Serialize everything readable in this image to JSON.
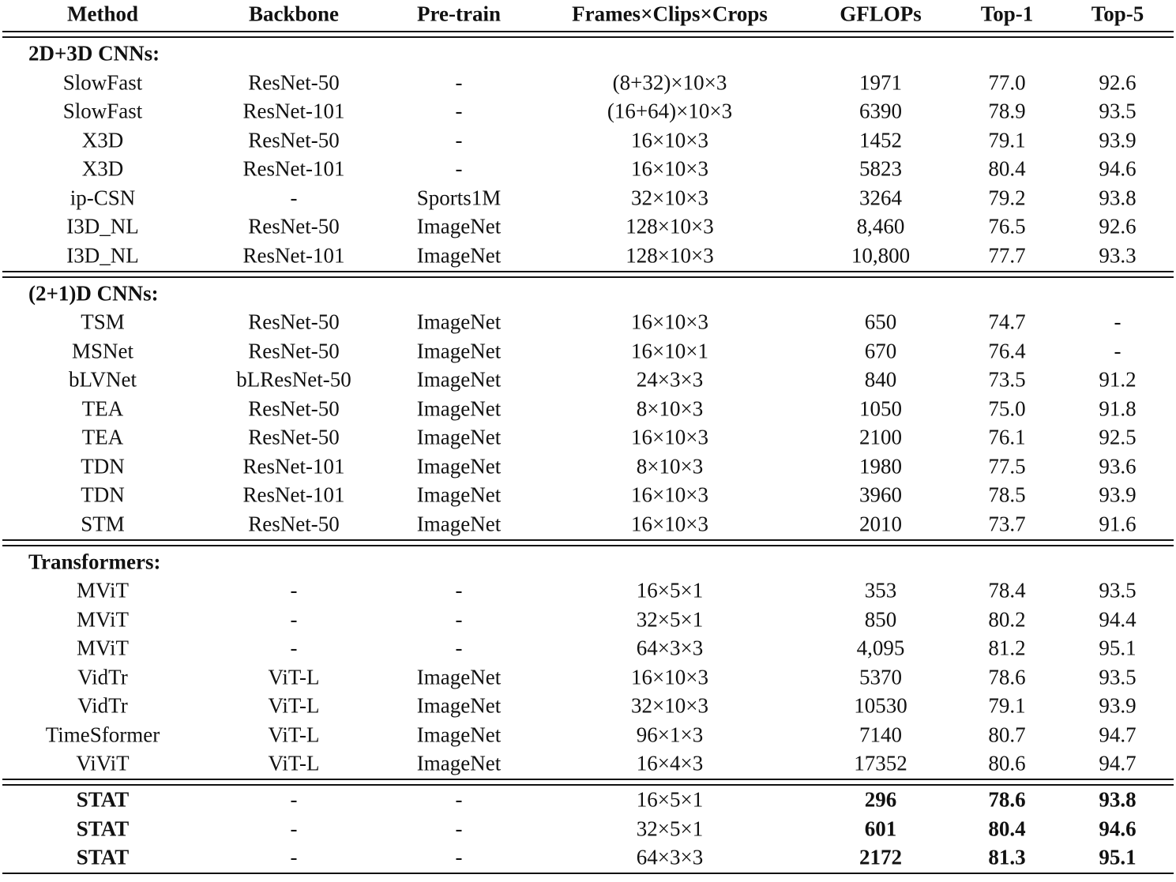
{
  "table": {
    "header": [
      "Method",
      "Backbone",
      "Pre-train",
      "Frames×Clips×Crops",
      "GFLOPs",
      "Top-1",
      "Top-5"
    ],
    "sections": [
      {
        "title": "2D+3D CNNs:",
        "rows": [
          [
            "SlowFast",
            "ResNet-50",
            "-",
            "(8+32)×10×3",
            "1971",
            "77.0",
            "92.6"
          ],
          [
            "SlowFast",
            "ResNet-101",
            "-",
            "(16+64)×10×3",
            "6390",
            "78.9",
            "93.5"
          ],
          [
            "X3D",
            "ResNet-50",
            "-",
            "16×10×3",
            "1452",
            "79.1",
            "93.9"
          ],
          [
            "X3D",
            "ResNet-101",
            "-",
            "16×10×3",
            "5823",
            "80.4",
            "94.6"
          ],
          [
            "ip-CSN",
            "-",
            "Sports1M",
            "32×10×3",
            "3264",
            "79.2",
            "93.8"
          ],
          [
            "I3D_NL",
            "ResNet-50",
            "ImageNet",
            "128×10×3",
            "8,460",
            "76.5",
            "92.6"
          ],
          [
            "I3D_NL",
            "ResNet-101",
            "ImageNet",
            "128×10×3",
            "10,800",
            "77.7",
            "93.3"
          ]
        ]
      },
      {
        "title": "(2+1)D CNNs:",
        "rows": [
          [
            "TSM",
            "ResNet-50",
            "ImageNet",
            "16×10×3",
            "650",
            "74.7",
            "-"
          ],
          [
            "MSNet",
            "ResNet-50",
            "ImageNet",
            "16×10×1",
            "670",
            "76.4",
            "-"
          ],
          [
            "bLVNet",
            "bLResNet-50",
            "ImageNet",
            "24×3×3",
            "840",
            "73.5",
            "91.2"
          ],
          [
            "TEA",
            "ResNet-50",
            "ImageNet",
            "8×10×3",
            "1050",
            "75.0",
            "91.8"
          ],
          [
            "TEA",
            "ResNet-50",
            "ImageNet",
            "16×10×3",
            "2100",
            "76.1",
            "92.5"
          ],
          [
            "TDN",
            "ResNet-101",
            "ImageNet",
            "8×10×3",
            "1980",
            "77.5",
            "93.6"
          ],
          [
            "TDN",
            "ResNet-101",
            "ImageNet",
            "16×10×3",
            "3960",
            "78.5",
            "93.9"
          ],
          [
            "STM",
            "ResNet-50",
            "ImageNet",
            "16×10×3",
            "2010",
            "73.7",
            "91.6"
          ]
        ]
      },
      {
        "title": "Transformers:",
        "rows": [
          [
            "MViT",
            "-",
            "-",
            "16×5×1",
            "353",
            "78.4",
            "93.5"
          ],
          [
            "MViT",
            "-",
            "-",
            "32×5×1",
            "850",
            "80.2",
            "94.4"
          ],
          [
            "MViT",
            "-",
            "-",
            "64×3×3",
            "4,095",
            "81.2",
            "95.1"
          ],
          [
            "VidTr",
            "ViT-L",
            "ImageNet",
            "16×10×3",
            "5370",
            "78.6",
            "93.5"
          ],
          [
            "VidTr",
            "ViT-L",
            "ImageNet",
            "32×10×3",
            "10530",
            "79.1",
            "93.9"
          ],
          [
            "TimeSformer",
            "ViT-L",
            "ImageNet",
            "96×1×3",
            "7140",
            "80.7",
            "94.7"
          ],
          [
            "ViViT",
            "ViT-L",
            "ImageNet",
            "16×4×3",
            "17352",
            "80.6",
            "94.7"
          ]
        ]
      },
      {
        "bold_columns": [
          0,
          4,
          5,
          6
        ],
        "rows": [
          [
            "STAT",
            "-",
            "-",
            "16×5×1",
            "296",
            "78.6",
            "93.8"
          ],
          [
            "STAT",
            "-",
            "-",
            "32×5×1",
            "601",
            "80.4",
            "94.6"
          ],
          [
            "STAT",
            "-",
            "-",
            "64×3×3",
            "2172",
            "81.3",
            "95.1"
          ]
        ]
      }
    ]
  }
}
